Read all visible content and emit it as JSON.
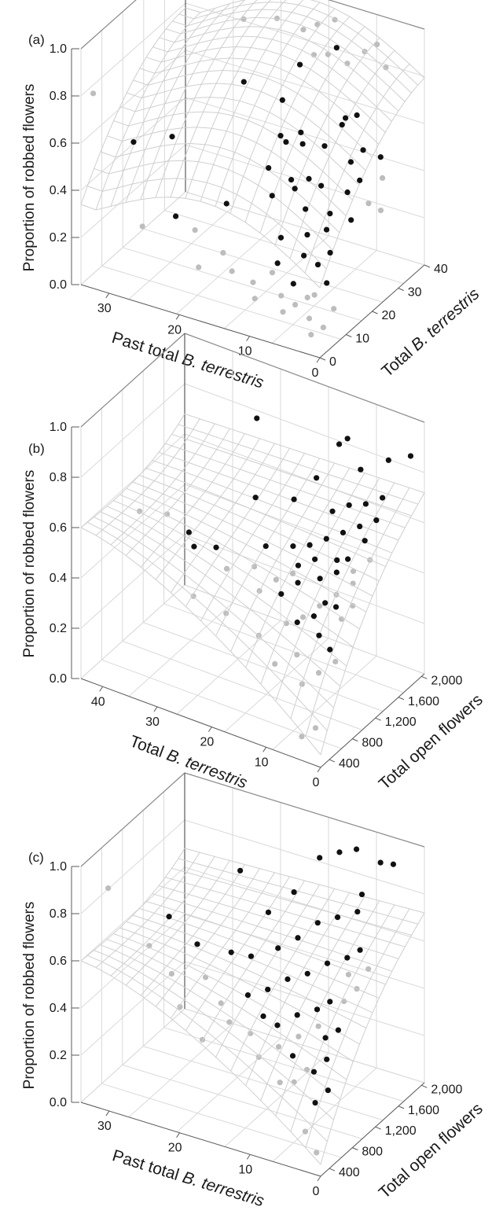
{
  "colors": {
    "surface_mesh": "#cfcfcf",
    "box_lines": "#d9d9d9",
    "axis_lines": "#1a1a1a",
    "point_above": "#111111",
    "point_below": "#bdbdbd"
  },
  "chart_data": [
    {
      "panel_label": "(a)",
      "type": "scatter",
      "subtype": "3d-scatter-with-fitted-surface",
      "zlabel": "Proportion of robbed flowers",
      "xlabel": {
        "prefix": "Past total ",
        "italic": "B. terrestris"
      },
      "ylabel": {
        "prefix": "Total ",
        "italic": "B. terrestris"
      },
      "x_ticks": [
        "30",
        "20",
        "10",
        "0"
      ],
      "y_ticks": [
        "0",
        "10",
        "20",
        "30",
        "40"
      ],
      "z_ticks": [
        "0.0",
        "0.2",
        "0.4",
        "0.6",
        "0.8",
        "1.0"
      ],
      "xlim": [
        0,
        34
      ],
      "ylim": [
        0,
        40
      ],
      "zlim": [
        0,
        1
      ],
      "surface_shape": "dome",
      "points_above": [
        [
          28,
          4,
          0.62
        ],
        [
          24,
          8,
          0.64
        ],
        [
          19,
          22,
          0.78
        ],
        [
          14,
          30,
          0.82
        ],
        [
          11,
          36,
          0.86
        ],
        [
          15,
          26,
          0.7
        ],
        [
          12,
          25,
          0.6
        ],
        [
          13,
          22,
          0.58
        ],
        [
          11,
          23,
          0.58
        ],
        [
          9,
          26,
          0.56
        ],
        [
          8,
          30,
          0.62
        ],
        [
          7,
          33,
          0.64
        ],
        [
          6,
          28,
          0.5
        ],
        [
          12,
          14,
          0.44
        ],
        [
          9,
          20,
          0.48
        ],
        [
          8,
          16,
          0.4
        ],
        [
          5,
          24,
          0.42
        ],
        [
          4,
          34,
          0.48
        ],
        [
          17,
          10,
          0.4
        ],
        [
          22,
          4,
          0.36
        ],
        [
          10,
          12,
          0.3
        ],
        [
          7,
          14,
          0.32
        ],
        [
          5,
          16,
          0.34
        ],
        [
          3,
          20,
          0.36
        ],
        [
          9,
          8,
          0.24
        ],
        [
          6,
          10,
          0.28
        ],
        [
          4,
          10,
          0.26
        ],
        [
          3,
          12,
          0.3
        ],
        [
          2,
          8,
          0.22
        ],
        [
          6,
          6,
          0.2
        ],
        [
          14,
          18,
          0.5
        ],
        [
          4,
          26,
          0.46
        ],
        [
          13,
          24,
          0.4
        ],
        [
          11,
          20,
          0.42
        ],
        [
          8,
          22,
          0.44
        ],
        [
          6,
          20,
          0.36
        ],
        [
          16,
          28,
          0.52
        ],
        [
          9,
          34,
          0.6
        ],
        [
          5,
          30,
          0.54
        ]
      ],
      "points_below": [
        [
          33,
          2,
          0.8
        ],
        [
          26,
          2,
          0.3
        ],
        [
          20,
          6,
          0.3
        ],
        [
          16,
          6,
          0.24
        ],
        [
          14,
          4,
          0.2
        ],
        [
          11,
          4,
          0.18
        ],
        [
          9,
          6,
          0.22
        ],
        [
          7,
          4,
          0.16
        ],
        [
          5,
          4,
          0.14
        ],
        [
          3,
          6,
          0.18
        ],
        [
          3,
          4,
          0.1
        ],
        [
          1,
          4,
          0.08
        ],
        [
          2,
          2,
          0.06
        ],
        [
          18,
          2,
          0.2
        ],
        [
          6,
          2,
          0.12
        ],
        [
          1,
          8,
          0.12
        ],
        [
          4,
          6,
          0.16
        ],
        [
          10,
          2,
          0.14
        ],
        [
          13,
          34,
          0.96
        ],
        [
          10,
          30,
          0.9
        ],
        [
          7,
          36,
          0.88
        ],
        [
          15,
          34,
          0.92
        ],
        [
          12,
          38,
          0.95
        ],
        [
          8,
          32,
          0.86
        ],
        [
          6,
          38,
          0.9
        ],
        [
          22,
          30,
          0.94
        ],
        [
          4,
          36,
          0.84
        ],
        [
          2,
          24,
          0.4
        ],
        [
          1,
          26,
          0.36
        ],
        [
          3,
          32,
          0.42
        ],
        [
          12,
          30,
          0.88
        ],
        [
          18,
          32,
          0.96
        ]
      ]
    },
    {
      "panel_label": "(b)",
      "type": "scatter",
      "subtype": "3d-scatter-with-fitted-surface",
      "zlabel": "Proportion of robbed flowers",
      "xlabel": {
        "prefix": "Total ",
        "italic": "B. terrestris"
      },
      "ylabel": {
        "prefix": "Total open flowers",
        "italic": ""
      },
      "x_ticks": [
        "40",
        "30",
        "20",
        "10",
        "0"
      ],
      "y_ticks": [
        "400",
        "800",
        "1,200",
        "1,600",
        "2,000"
      ],
      "z_ticks": [
        "0.0",
        "0.2",
        "0.4",
        "0.6",
        "0.8",
        "1.0"
      ],
      "xlim": [
        0,
        44
      ],
      "ylim": [
        250,
        2050
      ],
      "zlim": [
        0,
        1
      ],
      "surface_shape": "saddle",
      "points_above": [
        [
          26,
          1600,
          0.9
        ],
        [
          13,
          1800,
          0.86
        ],
        [
          12,
          1850,
          0.88
        ],
        [
          8,
          1700,
          0.82
        ],
        [
          5,
          1900,
          0.84
        ],
        [
          2,
          2000,
          0.86
        ],
        [
          22,
          1200,
          0.7
        ],
        [
          30,
          800,
          0.58
        ],
        [
          28,
          700,
          0.56
        ],
        [
          25,
          800,
          0.56
        ],
        [
          18,
          1000,
          0.58
        ],
        [
          10,
          1400,
          0.7
        ],
        [
          8,
          1500,
          0.72
        ],
        [
          6,
          1600,
          0.72
        ],
        [
          4,
          1700,
          0.74
        ],
        [
          9,
          1200,
          0.64
        ],
        [
          7,
          1300,
          0.66
        ],
        [
          5,
          1400,
          0.68
        ],
        [
          11,
          900,
          0.58
        ],
        [
          9,
          1000,
          0.6
        ],
        [
          12,
          700,
          0.5
        ],
        [
          10,
          800,
          0.54
        ],
        [
          7,
          900,
          0.56
        ],
        [
          5,
          1000,
          0.58
        ],
        [
          4,
          1100,
          0.62
        ],
        [
          3,
          1300,
          0.66
        ],
        [
          6,
          700,
          0.46
        ],
        [
          5,
          800,
          0.5
        ],
        [
          3,
          800,
          0.5
        ],
        [
          4,
          600,
          0.42
        ],
        [
          2,
          600,
          0.38
        ],
        [
          14,
          1500,
          0.78
        ],
        [
          11,
          1100,
          0.62
        ],
        [
          6,
          1100,
          0.6
        ],
        [
          3,
          1500,
          0.7
        ],
        [
          16,
          1300,
          0.72
        ],
        [
          13,
          1000,
          0.62
        ],
        [
          8,
          600,
          0.44
        ]
      ],
      "points_below": [
        [
          38,
          700,
          0.62
        ],
        [
          34,
          800,
          0.62
        ],
        [
          22,
          700,
          0.52
        ],
        [
          18,
          800,
          0.54
        ],
        [
          16,
          700,
          0.48
        ],
        [
          14,
          800,
          0.52
        ],
        [
          12,
          900,
          0.54
        ],
        [
          10,
          600,
          0.42
        ],
        [
          8,
          700,
          0.44
        ],
        [
          6,
          800,
          0.48
        ],
        [
          4,
          900,
          0.52
        ],
        [
          2,
          1000,
          0.56
        ],
        [
          2,
          800,
          0.46
        ],
        [
          1,
          1200,
          0.62
        ],
        [
          3,
          1100,
          0.58
        ],
        [
          20,
          500,
          0.4
        ],
        [
          26,
          500,
          0.42
        ],
        [
          14,
          500,
          0.36
        ],
        [
          10,
          400,
          0.3
        ],
        [
          7,
          500,
          0.34
        ],
        [
          5,
          400,
          0.26
        ],
        [
          3,
          500,
          0.3
        ],
        [
          1,
          600,
          0.34
        ],
        [
          2,
          350,
          0.12
        ],
        [
          4,
          300,
          0.08
        ],
        [
          1,
          900,
          0.5
        ]
      ]
    },
    {
      "panel_label": "(c)",
      "type": "scatter",
      "subtype": "3d-scatter-with-fitted-surface",
      "zlabel": "Proportion of robbed flowers",
      "xlabel": {
        "prefix": "Past total ",
        "italic": "B. terrestris"
      },
      "ylabel": {
        "prefix": "Total open flowers",
        "italic": ""
      },
      "x_ticks": [
        "30",
        "20",
        "10",
        "0"
      ],
      "y_ticks": [
        "400",
        "800",
        "1,200",
        "1,600",
        "2,000"
      ],
      "z_ticks": [
        "0.0",
        "0.2",
        "0.4",
        "0.6",
        "0.8",
        "1.0"
      ],
      "xlim": [
        0,
        34
      ],
      "ylim": [
        250,
        2050
      ],
      "zlim": [
        0,
        1
      ],
      "surface_shape": "saddle",
      "points_above": [
        [
          26,
          800,
          0.74
        ],
        [
          20,
          1300,
          0.88
        ],
        [
          12,
          1700,
          0.92
        ],
        [
          10,
          1800,
          0.94
        ],
        [
          8,
          1850,
          0.96
        ],
        [
          5,
          1900,
          0.92
        ],
        [
          4,
          2000,
          0.9
        ],
        [
          22,
          800,
          0.66
        ],
        [
          18,
          900,
          0.64
        ],
        [
          16,
          1000,
          0.62
        ],
        [
          13,
          1100,
          0.66
        ],
        [
          11,
          1200,
          0.7
        ],
        [
          9,
          1300,
          0.76
        ],
        [
          7,
          1400,
          0.78
        ],
        [
          5,
          1500,
          0.8
        ],
        [
          14,
          700,
          0.54
        ],
        [
          12,
          800,
          0.56
        ],
        [
          10,
          900,
          0.6
        ],
        [
          8,
          1000,
          0.62
        ],
        [
          6,
          1100,
          0.66
        ],
        [
          4,
          1200,
          0.68
        ],
        [
          3,
          1300,
          0.7
        ],
        [
          9,
          600,
          0.48
        ],
        [
          7,
          700,
          0.52
        ],
        [
          5,
          800,
          0.54
        ],
        [
          4,
          900,
          0.56
        ],
        [
          3,
          700,
          0.46
        ],
        [
          2,
          800,
          0.48
        ],
        [
          6,
          500,
          0.4
        ],
        [
          3,
          500,
          0.36
        ],
        [
          2,
          600,
          0.4
        ],
        [
          16,
          1300,
          0.74
        ],
        [
          14,
          1500,
          0.8
        ],
        [
          6,
          1700,
          0.82
        ],
        [
          11,
          600,
          0.5
        ],
        [
          2,
          400,
          0.26
        ],
        [
          1,
          500,
          0.3
        ]
      ],
      "points_below": [
        [
          33,
          600,
          0.84
        ],
        [
          28,
          700,
          0.62
        ],
        [
          24,
          600,
          0.56
        ],
        [
          20,
          700,
          0.56
        ],
        [
          17,
          600,
          0.5
        ],
        [
          15,
          500,
          0.46
        ],
        [
          12,
          500,
          0.44
        ],
        [
          10,
          400,
          0.38
        ],
        [
          8,
          500,
          0.42
        ],
        [
          6,
          600,
          0.46
        ],
        [
          4,
          700,
          0.5
        ],
        [
          2,
          900,
          0.58
        ],
        [
          1,
          1000,
          0.62
        ],
        [
          1,
          1200,
          0.66
        ],
        [
          3,
          1100,
          0.64
        ],
        [
          18,
          400,
          0.38
        ],
        [
          22,
          500,
          0.46
        ],
        [
          5,
          400,
          0.32
        ],
        [
          3,
          350,
          0.14
        ],
        [
          1,
          300,
          0.08
        ],
        [
          7,
          400,
          0.3
        ],
        [
          4,
          500,
          0.36
        ]
      ]
    }
  ]
}
